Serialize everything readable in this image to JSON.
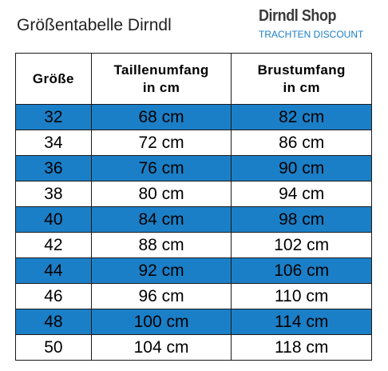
{
  "header": {
    "title": "Größentabelle Dirndl",
    "brand_name": "Dirndl Shop",
    "brand_tagline": "TRACHTEN DISCOUNT"
  },
  "colors": {
    "stripe": "#1b7fc7",
    "brand_tagline": "#1a7fc4"
  },
  "table": {
    "columns": [
      {
        "lines": [
          "Größe"
        ]
      },
      {
        "lines": [
          "Taillenumfang",
          "in cm"
        ]
      },
      {
        "lines": [
          "Brustumfang",
          "in cm"
        ]
      }
    ],
    "rows": [
      {
        "size": "32",
        "waist": "68 cm",
        "bust": "82 cm",
        "stripe": true
      },
      {
        "size": "34",
        "waist": "72 cm",
        "bust": "86 cm",
        "stripe": false
      },
      {
        "size": "36",
        "waist": "76 cm",
        "bust": "90 cm",
        "stripe": true
      },
      {
        "size": "38",
        "waist": "80 cm",
        "bust": "94 cm",
        "stripe": false
      },
      {
        "size": "40",
        "waist": "84 cm",
        "bust": "98 cm",
        "stripe": true
      },
      {
        "size": "42",
        "waist": "88 cm",
        "bust": "102 cm",
        "stripe": false
      },
      {
        "size": "44",
        "waist": "92 cm",
        "bust": "106 cm",
        "stripe": true
      },
      {
        "size": "46",
        "waist": "96 cm",
        "bust": "110 cm",
        "stripe": false
      },
      {
        "size": "48",
        "waist": "100 cm",
        "bust": "114 cm",
        "stripe": true
      },
      {
        "size": "50",
        "waist": "104 cm",
        "bust": "118 cm",
        "stripe": false
      }
    ]
  }
}
